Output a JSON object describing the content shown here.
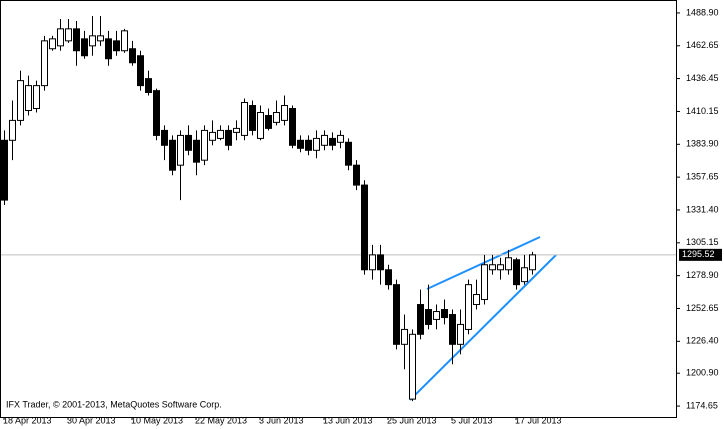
{
  "chart_data": {
    "type": "candlestick",
    "credit": "IFX Trader, © 2001-2013, MetaQuotes Software Corp.",
    "categories": [
      "18 Apr 2013",
      null,
      null,
      null,
      null,
      null,
      null,
      null,
      "30 Apr 2013",
      null,
      null,
      null,
      null,
      null,
      null,
      null,
      "10 May 2013",
      null,
      null,
      null,
      null,
      null,
      null,
      null,
      "22 May 2013",
      null,
      null,
      null,
      null,
      null,
      null,
      null,
      "3 Jun 2013",
      null,
      null,
      null,
      null,
      null,
      null,
      null,
      "13 Jun 2013",
      null,
      null,
      null,
      null,
      null,
      null,
      null,
      "25 Jun 2013",
      null,
      null,
      null,
      null,
      null,
      null,
      null,
      "5 Jul 2013",
      null,
      null,
      null,
      null,
      null,
      null,
      null,
      "17 Jul 2013",
      null,
      null
    ],
    "open": [
      1387.1,
      1387.1,
      1403.0,
      1410.9,
      1412.5,
      1430.8,
      1460.3,
      1462.6,
      1466.6,
      1476.2,
      1468.2,
      1462.6,
      1466.6,
      1468.2,
      1466.6,
      1458.7,
      1460.3,
      1454.7,
      1436.4,
      1426.8,
      1395.0,
      1387.1,
      1367.2,
      1391.0,
      1387.1,
      1371.2,
      1387.1,
      1388.6,
      1395.0,
      1393.4,
      1391.0,
      1414.9,
      1388.6,
      1406.9,
      1401.4,
      1403.0,
      1412.5,
      1387.1,
      1387.1,
      1379.1,
      1383.1,
      1388.6,
      1385.5,
      1385.5,
      1367.2,
      1351.3,
      1283.6,
      1295.5,
      1283.6,
      1271.7,
      1224.0,
      1180.2,
      1255.8,
      1251.8,
      1243.9,
      1251.8,
      1247.8,
      1224.0,
      1235.9,
      1255.8,
      1259.8,
      1283.6,
      1283.6,
      1283.6,
      1291.6,
      1274.1,
      1283.6
    ],
    "high": [
      1395.0,
      1418.9,
      1442.8,
      1438.8,
      1434.8,
      1470.6,
      1470.6,
      1484.1,
      1484.1,
      1482.5,
      1474.6,
      1486.5,
      1486.5,
      1474.6,
      1474.6,
      1476.2,
      1466.6,
      1458.7,
      1442.8,
      1428.4,
      1399.0,
      1391.0,
      1395.0,
      1399.0,
      1395.0,
      1399.0,
      1403.0,
      1399.0,
      1399.0,
      1403.0,
      1420.5,
      1418.9,
      1414.9,
      1412.5,
      1418.9,
      1422.9,
      1414.9,
      1391.0,
      1391.0,
      1395.0,
      1395.0,
      1393.4,
      1395.0,
      1388.6,
      1371.2,
      1355.2,
      1303.5,
      1303.5,
      1287.6,
      1275.7,
      1247.8,
      1235.9,
      1267.7,
      1271.7,
      1255.8,
      1259.8,
      1251.8,
      1251.8,
      1275.7,
      1275.7,
      1295.5,
      1295.5,
      1293.2,
      1299.5,
      1293.2,
      1295.5,
      1297.9
    ],
    "low": [
      1335.4,
      1371.2,
      1399.0,
      1406.9,
      1409.3,
      1426.8,
      1458.7,
      1458.7,
      1465.0,
      1446.7,
      1452.3,
      1454.7,
      1462.6,
      1446.7,
      1454.7,
      1457.1,
      1446.7,
      1426.8,
      1422.9,
      1387.1,
      1371.2,
      1359.2,
      1339.3,
      1375.1,
      1359.2,
      1367.2,
      1383.1,
      1387.1,
      1379.1,
      1387.1,
      1387.1,
      1391.0,
      1387.1,
      1395.0,
      1399.0,
      1399.0,
      1380.7,
      1377.5,
      1375.1,
      1372.7,
      1379.1,
      1379.1,
      1380.7,
      1363.2,
      1347.3,
      1279.7,
      1275.7,
      1271.7,
      1267.7,
      1220.0,
      1204.1,
      1178.6,
      1228.0,
      1235.9,
      1235.9,
      1239.9,
      1208.1,
      1216.0,
      1232.0,
      1251.8,
      1255.8,
      1279.7,
      1275.7,
      1279.7,
      1267.7,
      1271.7,
      1279.7
    ],
    "close": [
      1339.3,
      1403.0,
      1434.8,
      1430.8,
      1430.8,
      1466.6,
      1468.2,
      1476.2,
      1476.2,
      1458.7,
      1454.7,
      1470.6,
      1470.6,
      1452.3,
      1458.7,
      1474.6,
      1449.1,
      1430.8,
      1425.3,
      1391.0,
      1383.1,
      1363.2,
      1391.0,
      1379.1,
      1369.6,
      1395.0,
      1393.4,
      1395.0,
      1383.1,
      1396.6,
      1417.3,
      1395.0,
      1409.3,
      1396.6,
      1409.3,
      1414.9,
      1383.1,
      1380.7,
      1379.1,
      1388.6,
      1391.0,
      1383.1,
      1391.0,
      1367.2,
      1351.3,
      1283.6,
      1295.5,
      1283.6,
      1271.7,
      1224.0,
      1235.9,
      1232.0,
      1232.0,
      1239.9,
      1250.2,
      1245.4,
      1224.0,
      1239.9,
      1271.7,
      1263.8,
      1287.6,
      1287.6,
      1287.6,
      1293.2,
      1271.7,
      1285.2,
      1295.52
    ],
    "current_price": 1295.52,
    "ylim": [
      1165.9,
      1498.45
    ],
    "yticks": [
      {
        "value": 1488.9,
        "label": "1488.90"
      },
      1462.65,
      1436.45,
      1410.15,
      {
        "value": 1383.9,
        "label": "1383.90"
      },
      1357.65,
      {
        "value": 1331.4,
        "label": "1331.40"
      },
      1305.15,
      {
        "value": 1278.9,
        "label": "1278.90"
      },
      1252.65,
      {
        "value": 1226.4,
        "label": "1226.40"
      },
      {
        "value": 1200.9,
        "label": "1200.90"
      },
      1174.65
    ],
    "up_color": "#ffffff",
    "down_color": "#000000",
    "trendline_color": "#1e90ff"
  }
}
